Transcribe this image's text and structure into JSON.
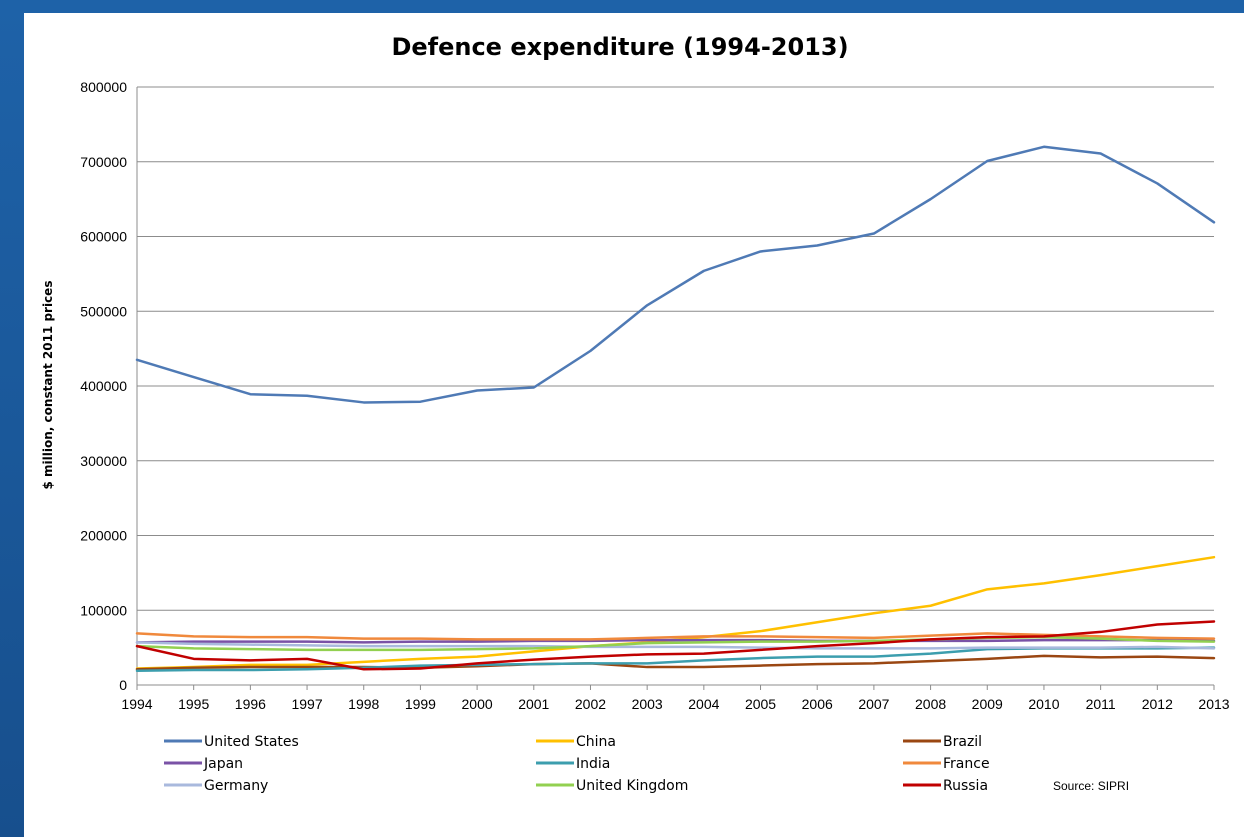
{
  "chart_data": {
    "type": "line",
    "title": "Defence expenditure (1994-2013)",
    "xlabel": "",
    "ylabel": "$ million, constant 2011 prices",
    "x": [
      1994,
      1995,
      1996,
      1997,
      1998,
      1999,
      2000,
      2001,
      2002,
      2003,
      2004,
      2005,
      2006,
      2007,
      2008,
      2009,
      2010,
      2011,
      2012,
      2013
    ],
    "yticks": [
      0,
      100000,
      200000,
      300000,
      400000,
      500000,
      600000,
      700000,
      800000
    ],
    "ylim": [
      0,
      800000
    ],
    "grid": true,
    "legend_position": "bottom",
    "source": "Source: SIPRI",
    "series": [
      {
        "name": "United States",
        "color": "#4f7ab5",
        "values": [
          435000,
          412000,
          389000,
          387000,
          378000,
          379000,
          394000,
          398000,
          447000,
          508000,
          554000,
          580000,
          588000,
          604000,
          650000,
          701000,
          720000,
          711000,
          671000,
          619000
        ]
      },
      {
        "name": "China",
        "color": "#ffc000",
        "values": [
          22000,
          24000,
          27000,
          27000,
          31000,
          35000,
          38000,
          45000,
          52000,
          57000,
          64000,
          72000,
          84000,
          96000,
          106000,
          128000,
          136000,
          147000,
          159000,
          171000
        ]
      },
      {
        "name": "Brazil",
        "color": "#9a4712",
        "values": [
          21000,
          23000,
          24000,
          24000,
          24000,
          23000,
          25000,
          28000,
          29000,
          24000,
          24000,
          26000,
          28000,
          29000,
          32000,
          35000,
          39000,
          37000,
          38000,
          36000
        ]
      },
      {
        "name": "Japan",
        "color": "#7a52a6",
        "values": [
          57000,
          58000,
          58000,
          58000,
          57000,
          58000,
          58000,
          59000,
          59000,
          60000,
          60000,
          60000,
          59000,
          59000,
          59000,
          59000,
          60000,
          60000,
          60000,
          59000
        ]
      },
      {
        "name": "India",
        "color": "#3c9eae",
        "values": [
          19000,
          20000,
          20000,
          21000,
          23000,
          26000,
          27000,
          28000,
          29000,
          29000,
          33000,
          36000,
          38000,
          38000,
          42000,
          48000,
          49000,
          49000,
          49000,
          50000
        ]
      },
      {
        "name": "France",
        "color": "#f0893c",
        "values": [
          69000,
          65000,
          64000,
          64000,
          62000,
          62000,
          61000,
          61000,
          61000,
          63000,
          65000,
          65000,
          64000,
          63000,
          66000,
          69000,
          67000,
          65000,
          63000,
          62000
        ]
      },
      {
        "name": "Germany",
        "color": "#a9b9dd",
        "values": [
          57000,
          55000,
          54000,
          53000,
          52000,
          52000,
          52000,
          52000,
          51000,
          51000,
          51000,
          50000,
          49000,
          49000,
          49000,
          50000,
          50000,
          50000,
          51000,
          49000
        ]
      },
      {
        "name": "United Kingdom",
        "color": "#92d050",
        "values": [
          52000,
          49000,
          48000,
          47000,
          47000,
          47000,
          48000,
          49000,
          52000,
          56000,
          57000,
          58000,
          58000,
          59000,
          61000,
          63000,
          64000,
          62000,
          59000,
          58000
        ]
      },
      {
        "name": "Russia",
        "color": "#c00000",
        "values": [
          52000,
          35000,
          33000,
          35000,
          21000,
          22000,
          29000,
          34000,
          38000,
          41000,
          42000,
          47000,
          52000,
          56000,
          61000,
          64000,
          65000,
          71000,
          81000,
          85000
        ]
      }
    ]
  }
}
